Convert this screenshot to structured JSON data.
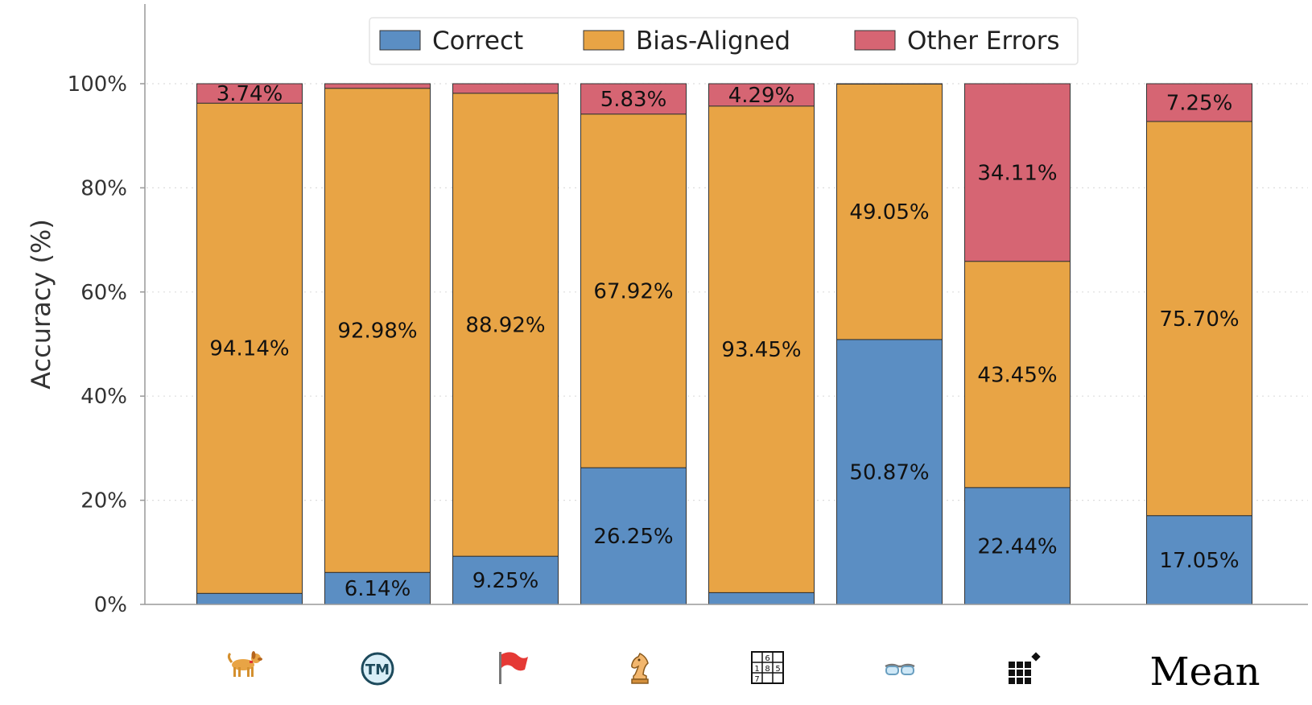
{
  "chart_data": {
    "type": "bar",
    "stacked": true,
    "ylabel": "Accuracy (%)",
    "ylim": [
      0,
      115
    ],
    "yticks": [
      "0%",
      "20%",
      "40%",
      "60%",
      "80%",
      "100%"
    ],
    "grid": true,
    "legend_position": "top-center",
    "categories": [
      "dog-emoji",
      "trademark-emoji",
      "red-flag-emoji",
      "chess-knight-emoji",
      "sudoku-grid-icon",
      "glasses-emoji",
      "pixel-grid-icon",
      "Mean"
    ],
    "series": [
      {
        "name": "Correct",
        "color": "#5b8ec3",
        "values": [
          2.12,
          6.14,
          9.25,
          26.25,
          2.26,
          50.87,
          22.44,
          17.05
        ],
        "labels": [
          "",
          "6.14%",
          "9.25%",
          "26.25%",
          "",
          "50.87%",
          "22.44%",
          "17.05%"
        ]
      },
      {
        "name": "Bias-Aligned",
        "color": "#e8a445",
        "values": [
          94.14,
          92.98,
          88.92,
          67.92,
          93.45,
          49.05,
          43.45,
          75.7
        ],
        "labels": [
          "94.14%",
          "92.98%",
          "88.92%",
          "67.92%",
          "93.45%",
          "49.05%",
          "43.45%",
          "75.70%"
        ]
      },
      {
        "name": "Other Errors",
        "color": "#d66573",
        "values": [
          3.74,
          0.88,
          1.83,
          5.83,
          4.29,
          0.08,
          34.11,
          7.25
        ],
        "labels": [
          "3.74%",
          "",
          "",
          "5.83%",
          "4.29%",
          "",
          "34.11%",
          "7.25%"
        ]
      }
    ],
    "bottom_label": "Mean"
  }
}
